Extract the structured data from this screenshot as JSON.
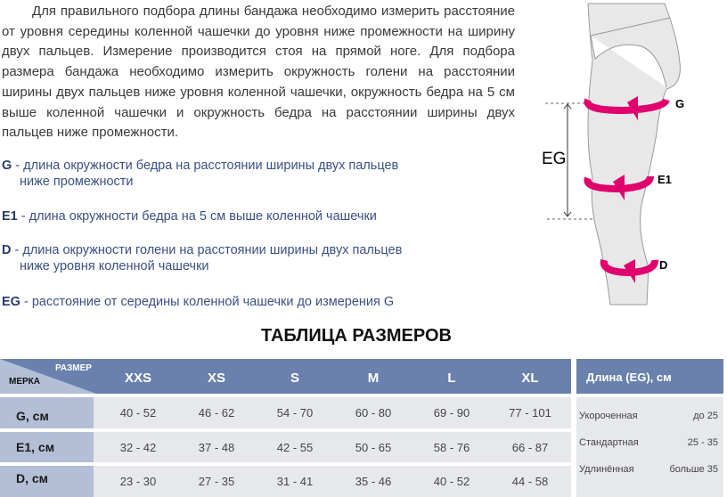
{
  "intro": "Для правильного подбора длины бандажа необходимо измерить расстояние от уровня середины коленной чашечки до уровня ниже промежности на ширину двух пальцев. Измерение производится стоя на прямой ноге. Для подбора размера бандажа необходимо измерить окружность голени на расстоянии ширины двух пальцев ниже уровня коленной чашечки, окружность бедра на 5 см выше коленной чашечки и окружность бедра на расстоянии  ширины двух пальцев ниже промежности.",
  "definitions": [
    {
      "key": "G",
      "line1": " - длина окружности бедра на расстоянии ширины двух пальцев",
      "line2": "ниже промежности"
    },
    {
      "key": "E1",
      "line1": " - длина окружности бедра на 5 см выше коленной чашечки",
      "line2": ""
    },
    {
      "key": "D",
      "line1": " - длина окружности голени на расстоянии ширины двух пальцев",
      "line2": "ниже уровня коленной чашечки"
    },
    {
      "key": "EG",
      "line1": " - расстояние от середины коленной чашечки до измерения G",
      "line2": ""
    }
  ],
  "diagram": {
    "labels": {
      "g": "G",
      "e1": "E1",
      "d": "D",
      "eg": "EG"
    },
    "accent": "#e0006e"
  },
  "title": "ТАБЛИЦА РАЗМЕРОВ",
  "table": {
    "corner_size": "РАЗМЕР",
    "corner_measure": "МЕРКА",
    "sizes": [
      "XXS",
      "XS",
      "S",
      "M",
      "L",
      "XL"
    ],
    "rows": [
      {
        "label": "G, см",
        "values": [
          "40 - 52",
          "46 - 62",
          "54 - 70",
          "60 - 80",
          "69 - 90",
          "77 - 101"
        ]
      },
      {
        "label": "E1, см",
        "values": [
          "32 - 42",
          "37 - 48",
          "42 - 55",
          "50 - 65",
          "58 - 76",
          "66 - 87"
        ]
      },
      {
        "label": "D, см",
        "values": [
          "23 - 30",
          "27 - 35",
          "31 - 41",
          "35 - 46",
          "40 - 52",
          "44 - 58"
        ]
      }
    ]
  },
  "length_table": {
    "header": "Длина (EG), см",
    "rows": [
      {
        "name": "Укороченная",
        "value": "до 25"
      },
      {
        "name": "Стандартная",
        "value": "25 - 35"
      },
      {
        "name": "Удлинённая",
        "value": "больше 35"
      }
    ]
  },
  "colors": {
    "header": "#6a80ad",
    "label": "#b3bfd6",
    "cell": "#e6e8eb",
    "text_blue": "#3b4f86"
  }
}
